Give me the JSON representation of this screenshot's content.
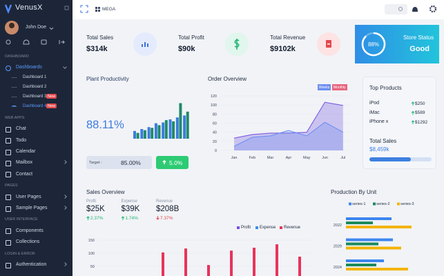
{
  "sidebar": {
    "brand": "VenusX",
    "user": "John Doe",
    "nav": [
      {
        "heading": "DASHBOARD"
      },
      {
        "label": "Dashboards",
        "active": true,
        "arrow": "down"
      },
      {
        "sublabel": "Dashboard 1"
      },
      {
        "sublabel": "Dashboard 2"
      },
      {
        "sublabel": "Dashboard 3",
        "badge": "New"
      },
      {
        "sublabel": "Dashboard 4",
        "badge": "New",
        "active": true
      },
      {
        "heading": "WEB APPS"
      },
      {
        "label": "Chat"
      },
      {
        "label": "Todo"
      },
      {
        "label": "Calendar"
      },
      {
        "label": "Mailbox",
        "arrow": "right"
      },
      {
        "label": "Contact"
      },
      {
        "heading": "PAGES"
      },
      {
        "label": "User Pages",
        "arrow": "right"
      },
      {
        "label": "Sample Pages",
        "arrow": "right"
      },
      {
        "heading": "USER INTERFACE"
      },
      {
        "label": "Components"
      },
      {
        "label": "Collections"
      },
      {
        "heading": "LOGIN & ERROR"
      },
      {
        "label": "Authentication",
        "arrow": "right"
      }
    ]
  },
  "topbar": {
    "menu": "MEGA"
  },
  "stats": [
    {
      "label": "Total Sales",
      "value": "$314k",
      "color": "#3d6fd8",
      "bg": "#e4ebfd"
    },
    {
      "label": "Total Profit",
      "value": "$90k",
      "color": "#22b573",
      "bg": "#e1f6ec"
    },
    {
      "label": "Total Revenue",
      "value": "$9102k",
      "color": "#e5484d",
      "bg": "#fde3e3"
    }
  ],
  "store": {
    "label": "Store Status",
    "value": "Good",
    "ring": {
      "value": 88,
      "label": "88%"
    }
  },
  "plant_productivity": {
    "title": "Plant Productivity",
    "value": "88.11%",
    "target_label": "Target :",
    "target": "85.00%",
    "change": "5.0%",
    "chart": {
      "type": "bar",
      "ylim": [
        0,
        100
      ],
      "series": [
        {
          "color": "#3b7ddd",
          "values": [
            20,
            25,
            30,
            40,
            42,
            50,
            55,
            60
          ]
        },
        {
          "color": "#1f8a6a",
          "values": [
            15,
            22,
            28,
            35,
            48,
            45,
            92,
            70
          ]
        }
      ]
    }
  },
  "order_overview": {
    "title": "Order Overview",
    "chart": {
      "type": "area",
      "categories": [
        "Jan",
        "Feb",
        "Mar",
        "Apr",
        "May",
        "Jun",
        "Jul"
      ],
      "ylim": [
        0,
        120
      ],
      "yticks": [
        0,
        20,
        40,
        60,
        80,
        100,
        120
      ],
      "grid": true,
      "series": [
        {
          "name": "Weeks",
          "color": "#6f8ff0",
          "values": [
            9,
            29,
            32,
            44,
            32,
            62,
            40
          ]
        },
        {
          "name": "Monthly",
          "color": "#7b5ce0",
          "legend_color": "#e8657f",
          "values": [
            27,
            35,
            38,
            38,
            40,
            106,
            99
          ]
        }
      ]
    }
  },
  "top_products": {
    "title": "Top Products",
    "items": [
      {
        "name": "iPod",
        "price": "$250"
      },
      {
        "name": "iMac",
        "price": "$589"
      },
      {
        "name": "iPhone x",
        "price": "$1292"
      }
    ],
    "total_label": "Total Sales",
    "total": "$8,459k"
  },
  "sales_overview": {
    "title": "Sales Overview",
    "kpis": [
      {
        "label": "Profit",
        "value": "$25K",
        "change": "2.37%",
        "trend": "up"
      },
      {
        "label": "Expense",
        "value": "$39K",
        "change": "1.74%",
        "trend": "up"
      },
      {
        "label": "Revenue",
        "value": "$208B",
        "change": "7.37%",
        "trend": "down"
      }
    ],
    "chart": {
      "type": "bar",
      "categories": [
        null,
        null,
        null,
        null,
        null,
        null,
        null,
        null,
        null
      ],
      "ylim": [
        0,
        170
      ],
      "yticks": [
        50,
        100,
        150
      ],
      "grid": true,
      "series": [
        {
          "name": "Profit",
          "color": "#7b4fe0",
          "values": [
            null,
            null,
            null,
            null,
            null,
            null,
            null,
            null,
            null
          ]
        },
        {
          "name": "Expense",
          "color": "#3b8ce8",
          "values": [
            null,
            null,
            null,
            null,
            null,
            null,
            null,
            null,
            null
          ]
        },
        {
          "name": "Revenue",
          "color": "#e8335a",
          "values": [
            null,
            null,
            103,
            118,
            55,
            110,
            121,
            134,
            87
          ]
        }
      ]
    }
  },
  "production_by_unit": {
    "title": "Production By Unit",
    "chart": {
      "type": "hbar",
      "categories": [
        "2022",
        "2029",
        "2024"
      ],
      "xlim": [
        0,
        130
      ],
      "series": [
        {
          "name": "series-1",
          "color": "#3d86ef",
          "values": [
            66,
            68,
            55
          ]
        },
        {
          "name": "series-2",
          "color": "#1d8a5c",
          "values": [
            39,
            47,
            44
          ]
        },
        {
          "name": "series-3",
          "color": "#f4b400",
          "values": [
            95,
            80,
            90
          ]
        }
      ]
    }
  }
}
